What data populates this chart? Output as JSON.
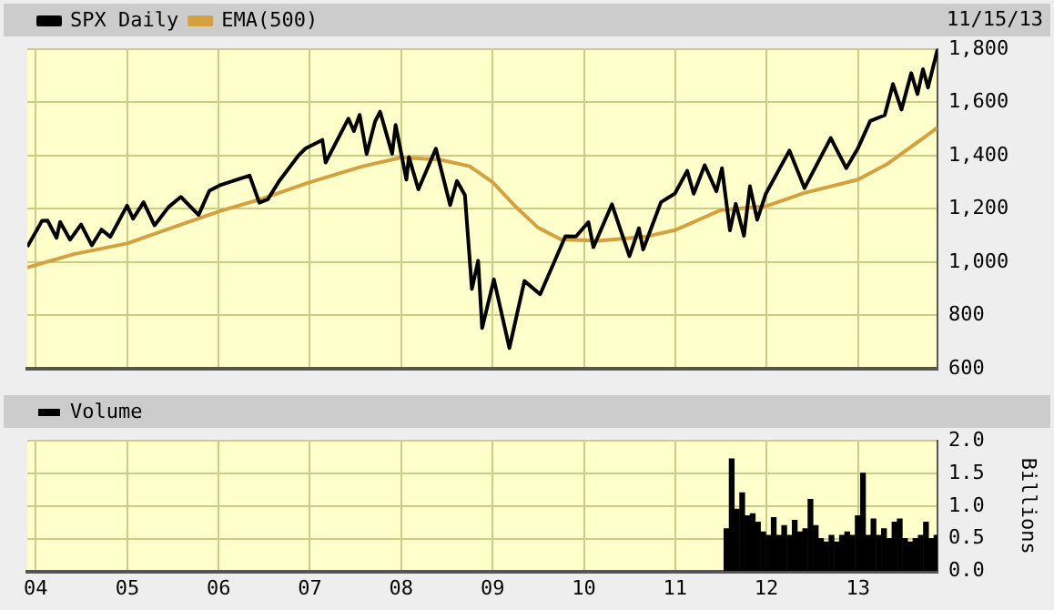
{
  "chart_data": [
    {
      "type": "line",
      "legend": "top left",
      "grid": true,
      "marker": "none",
      "tick_labels": "y",
      "annotations": [
        "11/15/13"
      ],
      "xlim": [
        "2003-11-28",
        "2013-11-15"
      ],
      "xticks": [
        {
          "value": "2004",
          "label": null
        },
        {
          "value": "2005",
          "label": null
        },
        {
          "value": "2006",
          "label": null
        },
        {
          "value": "2007",
          "label": null
        },
        {
          "value": "2008",
          "label": null
        },
        {
          "value": "2009",
          "label": null
        },
        {
          "value": "2010",
          "label": null
        },
        {
          "value": "2011",
          "label": null
        },
        {
          "value": "2012",
          "label": null
        },
        {
          "value": "2013",
          "label": null
        }
      ],
      "ylim": [
        600,
        1800
      ],
      "yticks": [
        600,
        800,
        {
          "value": 1000,
          "label": "1,000"
        },
        {
          "value": 1200,
          "label": "1,200"
        },
        {
          "value": 1400,
          "label": "1,400"
        },
        {
          "value": 1600,
          "label": "1,600"
        },
        {
          "value": 1800,
          "label": "1,800"
        }
      ],
      "series": [
        {
          "name": "SPX Daily",
          "color": "#000000",
          "x": [
            "2003-11-28",
            "2003-12-31",
            "2004-01-26",
            "2004-02-17",
            "2004-03-24",
            "2004-04-07",
            "2004-05-17",
            "2004-06-30",
            "2004-08-12",
            "2004-09-20",
            "2004-10-25",
            "2004-12-31",
            "2005-01-24",
            "2005-03-07",
            "2005-04-20",
            "2005-06-15",
            "2005-08-03",
            "2005-10-13",
            "2005-11-25",
            "2006-01-10",
            "2006-05-05",
            "2006-06-13",
            "2006-07-17",
            "2006-08-31",
            "2006-11-17",
            "2006-12-15",
            "2007-02-20",
            "2007-03-05",
            "2007-06-04",
            "2007-06-26",
            "2007-07-19",
            "2007-08-16",
            "2007-09-19",
            "2007-10-09",
            "2007-11-26",
            "2007-12-10",
            "2008-01-22",
            "2008-02-01",
            "2008-03-10",
            "2008-05-19",
            "2008-07-15",
            "2008-08-11",
            "2008-09-12",
            "2008-10-10",
            "2008-11-04",
            "2008-11-20",
            "2009-01-06",
            "2009-03-09",
            "2009-05-08",
            "2009-07-10",
            "2009-10-19",
            "2009-11-30",
            "2010-01-19",
            "2010-02-08",
            "2010-04-23",
            "2010-07-02",
            "2010-08-09",
            "2010-08-26",
            "2010-11-05",
            "2010-12-31",
            "2011-02-18",
            "2011-03-16",
            "2011-04-29",
            "2011-06-15",
            "2011-07-07",
            "2011-08-08",
            "2011-08-31",
            "2011-10-03",
            "2011-10-27",
            "2011-11-25",
            "2011-12-30",
            "2012-04-02",
            "2012-06-01",
            "2012-09-14",
            "2012-11-15",
            "2012-12-31",
            "2013-02-19",
            "2013-04-18",
            "2013-05-21",
            "2013-06-24",
            "2013-08-02",
            "2013-08-27",
            "2013-09-18",
            "2013-10-08",
            "2013-11-15"
          ],
          "values": [
            1058,
            1112,
            1155,
            1156,
            1091,
            1151,
            1084,
            1141,
            1063,
            1122,
            1095,
            1212,
            1163,
            1225,
            1138,
            1207,
            1245,
            1177,
            1268,
            1290,
            1325,
            1223,
            1236,
            1304,
            1401,
            1427,
            1459,
            1374,
            1539,
            1492,
            1553,
            1406,
            1529,
            1565,
            1407,
            1515,
            1310,
            1395,
            1273,
            1426,
            1214,
            1305,
            1252,
            899,
            1005,
            752,
            935,
            677,
            929,
            879,
            1097,
            1096,
            1150,
            1056,
            1217,
            1022,
            1127,
            1047,
            1225,
            1258,
            1343,
            1257,
            1364,
            1266,
            1353,
            1119,
            1219,
            1099,
            1285,
            1159,
            1258,
            1419,
            1278,
            1466,
            1353,
            1426,
            1530,
            1552,
            1669,
            1573,
            1710,
            1631,
            1725,
            1656,
            1798
          ]
        },
        {
          "name": "EMA(500)",
          "color": "#d4a040",
          "x": [
            "2003-11-28",
            "2004-06-01",
            "2005-01-01",
            "2005-07-01",
            "2006-01-01",
            "2006-07-01",
            "2007-01-01",
            "2007-08-01",
            "2008-01-01",
            "2008-06-01",
            "2008-10-01",
            "2009-01-01",
            "2009-04-01",
            "2009-07-01",
            "2009-10-01",
            "2010-03-01",
            "2010-09-01",
            "2011-01-01",
            "2011-07-01",
            "2012-01-01",
            "2012-06-01",
            "2013-01-01",
            "2013-05-01",
            "2013-11-15"
          ],
          "values": [
            980,
            1030,
            1070,
            1130,
            1190,
            1240,
            1300,
            1360,
            1393,
            1385,
            1360,
            1300,
            1210,
            1130,
            1085,
            1080,
            1095,
            1120,
            1195,
            1210,
            1260,
            1310,
            1370,
            1505
          ]
        }
      ]
    },
    {
      "type": "bar",
      "legend": "top left",
      "grid": true,
      "ylabel": "Billions",
      "xlim": [
        "2003-11-28",
        "2013-11-15"
      ],
      "xticks": [
        {
          "value": "2004",
          "label": "04"
        },
        {
          "value": "2005",
          "label": "05"
        },
        {
          "value": "2006",
          "label": "06"
        },
        {
          "value": "2007",
          "label": "07"
        },
        {
          "value": "2008",
          "label": "08"
        },
        {
          "value": "2009",
          "label": "09"
        },
        {
          "value": "2010",
          "label": "10"
        },
        {
          "value": "2011",
          "label": "11"
        },
        {
          "value": "2012",
          "label": "12"
        },
        {
          "value": "2013",
          "label": "13"
        }
      ],
      "ylim": [
        0,
        2
      ],
      "yticks": [
        {
          "value": 0,
          "label": "0.0"
        },
        {
          "value": 0.5,
          "label": "0.5"
        },
        {
          "value": 1,
          "label": "1.0"
        },
        {
          "value": 1.5,
          "label": "1.5"
        },
        {
          "value": 2,
          "label": "2.0"
        }
      ],
      "series": [
        {
          "name": "Volume",
          "color": "#000000",
          "x": [
            "2011-07-25",
            "2011-08-15",
            "2011-09-05",
            "2011-09-26",
            "2011-10-17",
            "2011-11-07",
            "2011-11-28",
            "2011-12-19",
            "2012-01-09",
            "2012-01-30",
            "2012-02-20",
            "2012-03-12",
            "2012-04-02",
            "2012-04-23",
            "2012-05-14",
            "2012-06-04",
            "2012-06-25",
            "2012-07-16",
            "2012-08-06",
            "2012-08-27",
            "2012-09-17",
            "2012-10-08",
            "2012-10-29",
            "2012-11-19",
            "2012-12-10",
            "2012-12-31",
            "2013-01-21",
            "2013-02-11",
            "2013-03-04",
            "2013-03-25",
            "2013-04-15",
            "2013-05-06",
            "2013-05-27",
            "2013-06-17",
            "2013-07-08",
            "2013-07-29",
            "2013-08-19",
            "2013-09-09",
            "2013-09-30",
            "2013-10-21",
            "2013-11-11"
          ],
          "values": [
            0.65,
            1.72,
            0.95,
            1.2,
            0.85,
            0.88,
            0.75,
            0.6,
            0.55,
            0.82,
            0.55,
            0.7,
            0.55,
            0.78,
            0.6,
            0.65,
            1.1,
            0.7,
            0.5,
            0.45,
            0.55,
            0.45,
            0.55,
            0.6,
            0.55,
            0.85,
            1.5,
            0.55,
            0.8,
            0.55,
            0.65,
            0.5,
            0.75,
            0.8,
            0.5,
            0.45,
            0.5,
            0.55,
            0.75,
            0.5,
            0.55
          ]
        }
      ]
    }
  ]
}
